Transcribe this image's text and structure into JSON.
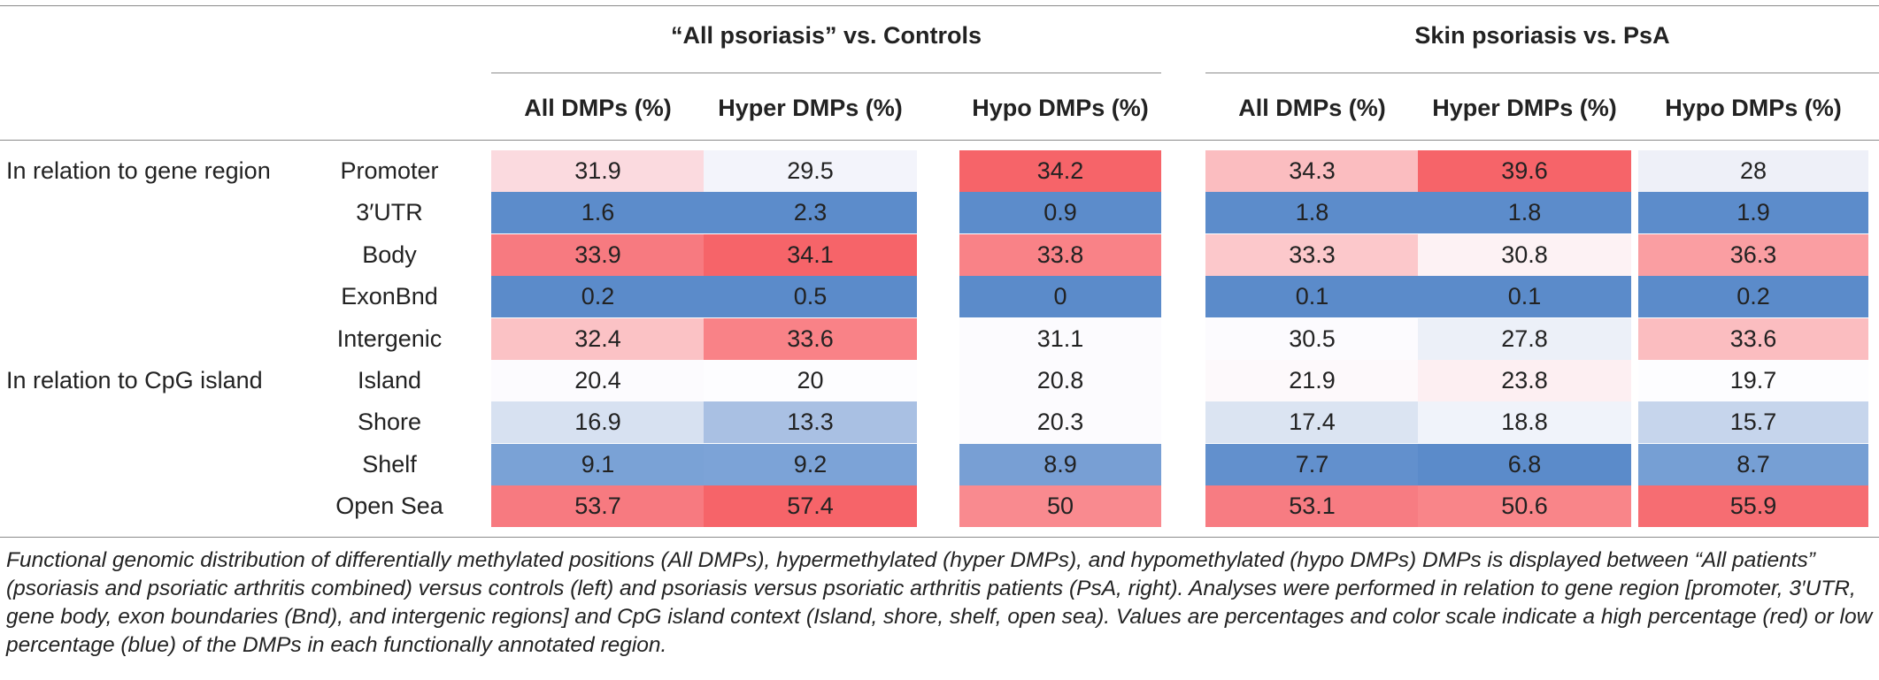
{
  "groups": [
    {
      "title": "“All psoriasis” vs. Controls"
    },
    {
      "title": "Skin psoriasis vs. PsA"
    }
  ],
  "columns": [
    "All DMPs (%)",
    "Hyper DMPs (%)",
    "Hypo DMPs (%)",
    "All DMPs (%)",
    "Hyper DMPs (%)",
    "Hypo DMPs (%)"
  ],
  "categories": [
    "In relation to gene region",
    "In relation to CpG island"
  ],
  "rows": [
    {
      "label": "Promoter",
      "values": [
        "31.9",
        "29.5",
        "34.2",
        "34.3",
        "39.6",
        "28"
      ],
      "colors": [
        "#fbdadf",
        "#f3f4fb",
        "#f66469",
        "#fbbdc0",
        "#f66469",
        "#eef0f8"
      ]
    },
    {
      "label": "3′UTR",
      "values": [
        "1.6",
        "2.3",
        "0.9",
        "1.8",
        "1.8",
        "1.9"
      ],
      "colors": [
        "#5c8ccb",
        "#5c8ccb",
        "#5c8ccb",
        "#5c8ccb",
        "#5c8ccb",
        "#5c8ccb"
      ]
    },
    {
      "label": "Body",
      "values": [
        "33.9",
        "34.1",
        "33.8",
        "33.3",
        "30.8",
        "36.3"
      ],
      "colors": [
        "#f77a80",
        "#f66469",
        "#f98287",
        "#fcc8cb",
        "#fdf2f4",
        "#fa9ea2"
      ]
    },
    {
      "label": "ExonBnd",
      "values": [
        "0.2",
        "0.5",
        "0",
        "0.1",
        "0.1",
        "0.2"
      ],
      "colors": [
        "#5b8bca",
        "#5b8bca",
        "#5b8bca",
        "#5b8bca",
        "#5b8bca",
        "#5b8bca"
      ]
    },
    {
      "label": "Intergenic",
      "values": [
        "32.4",
        "33.6",
        "31.1",
        "30.5",
        "27.8",
        "33.6"
      ],
      "colors": [
        "#fbc2c5",
        "#f98287",
        "#fcfbfe",
        "#fcfbfe",
        "#ecf0f8",
        "#fbbdc0"
      ]
    },
    {
      "label": "Island",
      "values": [
        "20.4",
        "20",
        "20.8",
        "21.9",
        "23.8",
        "19.7"
      ],
      "colors": [
        "#fcfbfe",
        "#fdfdff",
        "#fcfbfe",
        "#fdf9fb",
        "#fdeff2",
        "#fdfdff"
      ]
    },
    {
      "label": "Shore",
      "values": [
        "16.9",
        "13.3",
        "20.3",
        "17.4",
        "18.8",
        "15.7"
      ],
      "colors": [
        "#d7e1f1",
        "#a9c0e3",
        "#fcfbfe",
        "#dbe4f2",
        "#f0f3fa",
        "#c6d5ec"
      ]
    },
    {
      "label": "Shelf",
      "values": [
        "9.1",
        "9.2",
        "8.9",
        "7.7",
        "6.8",
        "8.7"
      ],
      "colors": [
        "#7aa2d6",
        "#7ca3d7",
        "#789fd4",
        "#6290cd",
        "#5b8bca",
        "#769fd4"
      ]
    },
    {
      "label": "Open Sea",
      "values": [
        "53.7",
        "57.4",
        "50",
        "53.1",
        "50.6",
        "55.9"
      ],
      "colors": [
        "#f77a80",
        "#f66469",
        "#f98a8f",
        "#f77c82",
        "#f98589",
        "#f66d72"
      ]
    }
  ],
  "caption": "Functional genomic distribution of differentially methylated positions (All DMPs), hypermethylated (hyper DMPs), and hypomethylated (hypo DMPs) DMPs is displayed between “All patients” (psoriasis and psoriatic arthritis combined) versus controls (left) and psoriasis versus psoriatic arthritis patients (PsA, right). Analyses were performed in relation to gene region [promoter, 3′UTR, gene body, exon boundaries (Bnd), and intergenic regions] and CpG island context (Island, shore, shelf, open sea). Values are percentages and color scale indicate a high percentage (red) or low percentage (blue) of the DMPs in each functionally annotated region."
}
